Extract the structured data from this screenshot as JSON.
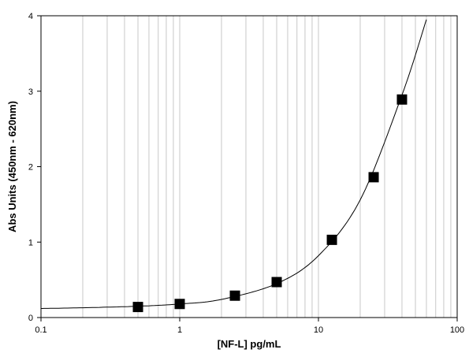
{
  "chart_data": {
    "type": "scatter",
    "xlabel": "[NF-L] pg/mL",
    "ylabel": "Abs Units (450nm - 620nm)",
    "x_scale": "log",
    "xlim": [
      0.1,
      100
    ],
    "ylim": [
      0,
      4
    ],
    "x_ticks": [
      0.1,
      1,
      10,
      100
    ],
    "x_tick_labels": [
      "0.1",
      "1",
      "10",
      "100"
    ],
    "y_ticks": [
      0,
      1,
      2,
      3,
      4
    ],
    "y_tick_labels": [
      "0",
      "1",
      "2",
      "3",
      "4"
    ],
    "grid": "vertical",
    "series": [
      {
        "kind": "points",
        "marker": "square",
        "color": "#000000",
        "x": [
          0.5,
          1.0,
          2.5,
          5.0,
          12.5,
          25,
          40
        ],
        "y": [
          0.14,
          0.18,
          0.29,
          0.47,
          1.03,
          1.86,
          2.89
        ]
      },
      {
        "kind": "fit-curve",
        "color": "#000000",
        "x": [
          0.1,
          0.2,
          0.5,
          1,
          2,
          5,
          10,
          20,
          40,
          60
        ],
        "y": [
          0.12,
          0.13,
          0.15,
          0.18,
          0.24,
          0.45,
          0.82,
          1.56,
          2.95,
          3.95
        ]
      }
    ]
  }
}
